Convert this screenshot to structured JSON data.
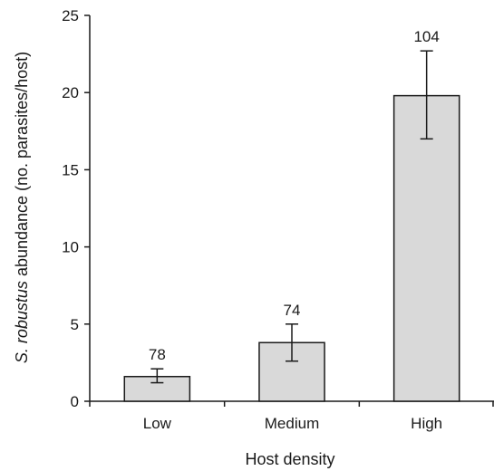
{
  "chart_data": {
    "type": "bar",
    "title": "",
    "xlabel": "Host density",
    "ylabel_italic": "S. robustus",
    "ylabel_rest": " abundance (no. parasites/host)",
    "categories": [
      "Low",
      "Medium",
      "High"
    ],
    "values": [
      1.6,
      3.8,
      19.8
    ],
    "error_low": [
      1.2,
      2.6,
      17.0
    ],
    "error_high": [
      2.1,
      5.0,
      22.7
    ],
    "bar_labels": [
      "78",
      "74",
      "104"
    ],
    "ylim": [
      0,
      25
    ],
    "yticks": [
      0,
      5,
      10,
      15,
      20,
      25
    ],
    "grid": false,
    "legend": "none",
    "colors": {
      "bar_fill": "#d9d9d9",
      "bar_stroke": "#1a1a1a",
      "axis": "#1a1a1a"
    }
  }
}
